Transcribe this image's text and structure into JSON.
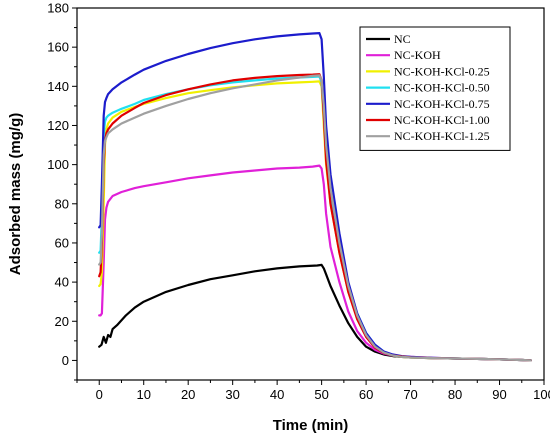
{
  "chart_data": {
    "type": "line",
    "xlabel": "Time (min)",
    "ylabel": "Adsorbed mass (mg/g)",
    "xlim": [
      -5,
      100
    ],
    "ylim": [
      -10,
      180
    ],
    "xticks": [
      0,
      10,
      20,
      30,
      40,
      50,
      60,
      70,
      80,
      90,
      100
    ],
    "yticks": [
      0,
      20,
      40,
      60,
      80,
      100,
      120,
      140,
      160,
      180
    ],
    "grid": false,
    "legend_position": "top-right",
    "series": [
      {
        "name": "NC",
        "color": "#000000",
        "x": [
          0,
          0.5,
          1,
          1.5,
          2,
          2.5,
          3,
          4,
          6,
          8,
          10,
          15,
          20,
          25,
          30,
          35,
          40,
          45,
          49,
          50,
          50.5,
          51,
          52,
          54,
          56,
          58,
          60,
          62,
          64,
          66,
          68,
          70,
          75,
          80,
          85,
          90,
          95,
          97
        ],
        "y": [
          7,
          8,
          12,
          9,
          13,
          12,
          16,
          18,
          23,
          27,
          30,
          35,
          38.5,
          41.5,
          43.5,
          45.5,
          47,
          48,
          48.5,
          48.8,
          47,
          44,
          38,
          28,
          19,
          12,
          7,
          4.5,
          3,
          2.2,
          1.8,
          1.5,
          1.2,
          1,
          0.8,
          0.5,
          0.2,
          0
        ]
      },
      {
        "name": "NC-KOH",
        "color": "#e020d8",
        "x": [
          0,
          0.3,
          0.6,
          1,
          1.3,
          1.6,
          2,
          3,
          5,
          8,
          10,
          15,
          20,
          25,
          30,
          35,
          40,
          45,
          48,
          49.5,
          50,
          50.5,
          51,
          52,
          54,
          56,
          58,
          60,
          62,
          64,
          66,
          68,
          70,
          75,
          80,
          85,
          90,
          95,
          97
        ],
        "y": [
          23,
          23,
          24,
          50,
          72,
          78,
          81,
          84,
          86,
          88,
          89,
          91,
          93,
          94.5,
          96,
          97,
          98,
          98.5,
          99,
          99.5,
          98,
          90,
          75,
          58,
          40,
          25,
          15,
          9,
          5.5,
          3.5,
          2.5,
          2,
          1.8,
          1.3,
          1,
          0.8,
          0.5,
          0.2,
          0
        ]
      },
      {
        "name": "NC-KOH-KCl-0.25",
        "color": "#f0f000",
        "x": [
          0,
          0.3,
          0.6,
          1,
          1.3,
          1.6,
          2,
          3,
          5,
          8,
          10,
          15,
          20,
          25,
          30,
          35,
          40,
          45,
          48,
          49.5,
          50,
          50.5,
          51,
          52,
          54,
          56,
          58,
          60,
          62,
          64,
          66,
          68,
          70,
          75,
          80,
          85,
          90,
          95,
          97
        ],
        "y": [
          38,
          39,
          45,
          80,
          110,
          118,
          121,
          124,
          127,
          129.5,
          131,
          134,
          136.5,
          138,
          139.5,
          140.5,
          141.5,
          142,
          142.3,
          142.5,
          140,
          120,
          100,
          80,
          55,
          35,
          22,
          13,
          7,
          4,
          2.5,
          1.8,
          1.5,
          1.2,
          1,
          0.8,
          0.5,
          0.2,
          0
        ]
      },
      {
        "name": "NC-KOH-KCl-0.50",
        "color": "#20e0f0",
        "x": [
          0,
          0.3,
          0.6,
          1,
          1.3,
          1.6,
          2,
          3,
          5,
          8,
          10,
          15,
          20,
          25,
          30,
          35,
          40,
          45,
          48,
          49.5,
          50,
          50.5,
          51,
          52,
          54,
          56,
          58,
          60,
          62,
          64,
          66,
          68,
          70,
          75,
          80,
          85,
          90,
          95,
          97
        ],
        "y": [
          55,
          56,
          75,
          115,
          122,
          124,
          125,
          126.5,
          128.5,
          131,
          133,
          136,
          138.5,
          140.5,
          142,
          143,
          144,
          144.5,
          144.8,
          145,
          142,
          125,
          105,
          85,
          58,
          38,
          24,
          14,
          8,
          4.5,
          2.8,
          2,
          1.6,
          1.2,
          1,
          0.8,
          0.5,
          0.2,
          0
        ]
      },
      {
        "name": "NC-KOH-KCl-0.75",
        "color": "#1c1ccc",
        "x": [
          0,
          0.3,
          0.6,
          1,
          1.3,
          1.6,
          2,
          3,
          5,
          8,
          10,
          15,
          20,
          25,
          30,
          35,
          40,
          45,
          48,
          49.5,
          50,
          50.5,
          51,
          52,
          54,
          56,
          58,
          60,
          62,
          64,
          66,
          68,
          70,
          75,
          80,
          85,
          90,
          95,
          97
        ],
        "y": [
          68,
          69,
          90,
          125,
          132,
          134,
          136,
          138.5,
          142,
          146,
          148.5,
          153,
          156.5,
          159.5,
          162,
          164,
          165.5,
          166.5,
          167,
          167.2,
          164,
          145,
          120,
          95,
          65,
          40,
          24,
          14,
          8,
          4.5,
          3,
          2.2,
          1.8,
          1.3,
          1,
          0.8,
          0.5,
          0.2,
          0
        ]
      },
      {
        "name": "NC-KOH-KCl-1.00",
        "color": "#e00000",
        "x": [
          0,
          0.3,
          0.6,
          1,
          1.3,
          1.6,
          2,
          3,
          5,
          8,
          10,
          15,
          20,
          25,
          30,
          35,
          40,
          45,
          48,
          49.5,
          50,
          50.5,
          51,
          52,
          54,
          56,
          58,
          60,
          62,
          64,
          66,
          68,
          70,
          75,
          80,
          85,
          90,
          95,
          97
        ],
        "y": [
          43,
          45,
          60,
          100,
          112,
          116,
          118,
          121,
          125,
          129,
          131.5,
          135.5,
          138.5,
          141,
          143,
          144.3,
          145.2,
          145.8,
          146,
          146.2,
          143,
          125,
          102,
          80,
          55,
          35,
          21,
          12,
          6.5,
          3.8,
          2.5,
          2,
          1.6,
          1.2,
          1,
          0.8,
          0.5,
          0.2,
          0
        ]
      },
      {
        "name": "NC-KOH-KCl-1.25",
        "color": "#a0a0a0",
        "x": [
          0,
          0.3,
          0.6,
          1,
          1.3,
          1.6,
          2,
          3,
          5,
          8,
          10,
          15,
          20,
          25,
          30,
          35,
          40,
          45,
          48,
          49.5,
          50,
          50.5,
          51,
          52,
          54,
          56,
          58,
          60,
          62,
          64,
          66,
          68,
          70,
          75,
          80,
          85,
          90,
          95,
          97
        ],
        "y": [
          49,
          50,
          65,
          105,
          112,
          114,
          116,
          118,
          121,
          124,
          126,
          130,
          133.5,
          136.5,
          139,
          141,
          143,
          144.5,
          145.3,
          145.6,
          143,
          130,
          110,
          88,
          60,
          38,
          23,
          13,
          7,
          4,
          2.5,
          1.8,
          1.5,
          1.2,
          1,
          0.8,
          0.5,
          0.2,
          0
        ]
      }
    ]
  }
}
